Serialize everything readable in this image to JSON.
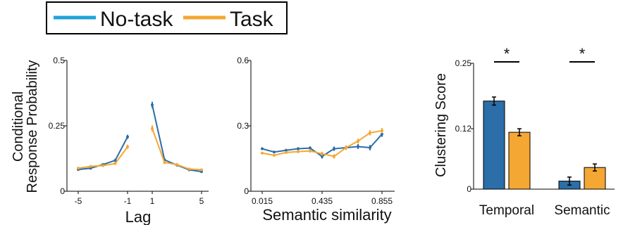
{
  "colors": {
    "no_task": "#2b6ea8",
    "task": "#f5a733",
    "legend_no_task": "#21a3d8"
  },
  "legend": {
    "items": [
      "No-task",
      "Task"
    ],
    "placement": "top-left"
  },
  "chart_data": [
    {
      "type": "line",
      "id": "lag-crp",
      "xlabel": "Lag",
      "ylabel_lines": [
        "Conditional",
        "Response Probability"
      ],
      "xticks": [
        -5,
        -1,
        1,
        5
      ],
      "yticks": [
        0,
        0.25,
        0.5
      ],
      "ytick_labels": [
        "0",
        "0.25",
        "0.5"
      ],
      "ylim": [
        0,
        0.5
      ],
      "segments": [
        [
          -5,
          -1
        ],
        [
          1,
          5
        ]
      ],
      "series": [
        {
          "name": "No-task",
          "x": [
            -5,
            -4,
            -3,
            -2,
            -1,
            1,
            2,
            3,
            4,
            5
          ],
          "y": [
            0.083,
            0.088,
            0.102,
            0.118,
            0.208,
            0.33,
            0.12,
            0.1,
            0.082,
            0.075
          ],
          "err": [
            0.005,
            0.005,
            0.005,
            0.006,
            0.008,
            0.012,
            0.006,
            0.005,
            0.005,
            0.005
          ]
        },
        {
          "name": "Task",
          "x": [
            -5,
            -4,
            -3,
            -2,
            -1,
            1,
            2,
            3,
            4,
            5
          ],
          "y": [
            0.088,
            0.095,
            0.098,
            0.106,
            0.17,
            0.24,
            0.11,
            0.102,
            0.085,
            0.082
          ],
          "err": [
            0.005,
            0.005,
            0.005,
            0.005,
            0.008,
            0.012,
            0.006,
            0.005,
            0.005,
            0.005
          ]
        }
      ]
    },
    {
      "type": "line",
      "id": "semantic-crp",
      "xlabel": "Semantic similarity",
      "xticks": [
        0.015,
        0.435,
        0.855
      ],
      "xtick_labels": [
        "0.015",
        "0.435",
        "0.855"
      ],
      "xlim": [
        0.015,
        0.855
      ],
      "yticks": [
        0,
        0.3,
        0.6
      ],
      "ytick_labels": [
        "0",
        "0.3",
        "0.6"
      ],
      "ylim": [
        0,
        0.6
      ],
      "series": [
        {
          "name": "No-task",
          "x": [
            0.015,
            0.099,
            0.183,
            0.267,
            0.351,
            0.435,
            0.519,
            0.603,
            0.687,
            0.771,
            0.855
          ],
          "y": [
            0.195,
            0.18,
            0.188,
            0.195,
            0.198,
            0.16,
            0.195,
            0.2,
            0.205,
            0.2,
            0.262
          ],
          "err": [
            0.005,
            0.006,
            0.006,
            0.007,
            0.008,
            0.01,
            0.01,
            0.01,
            0.011,
            0.012,
            0.012
          ]
        },
        {
          "name": "Task",
          "x": [
            0.015,
            0.099,
            0.183,
            0.267,
            0.351,
            0.435,
            0.519,
            0.603,
            0.687,
            0.771,
            0.855
          ],
          "y": [
            0.175,
            0.165,
            0.178,
            0.182,
            0.185,
            0.172,
            0.16,
            0.2,
            0.23,
            0.268,
            0.278
          ],
          "err": [
            0.005,
            0.006,
            0.006,
            0.007,
            0.008,
            0.009,
            0.01,
            0.011,
            0.011,
            0.012,
            0.012
          ]
        }
      ]
    },
    {
      "type": "bar",
      "id": "clustering",
      "ylabel": "Clustering Score",
      "categories": [
        "Temporal",
        "Semantic"
      ],
      "yticks": [
        0,
        0.12,
        0.25
      ],
      "ytick_labels": [
        "0",
        "0.12",
        "0.25"
      ],
      "ylim": [
        0,
        0.25
      ],
      "series": [
        {
          "name": "No-task",
          "values": [
            0.175,
            0.016
          ],
          "err": [
            0.008,
            0.008
          ]
        },
        {
          "name": "Task",
          "values": [
            0.113,
            0.043
          ],
          "err": [
            0.007,
            0.007
          ]
        }
      ],
      "annotations": [
        "*",
        "*"
      ]
    }
  ]
}
